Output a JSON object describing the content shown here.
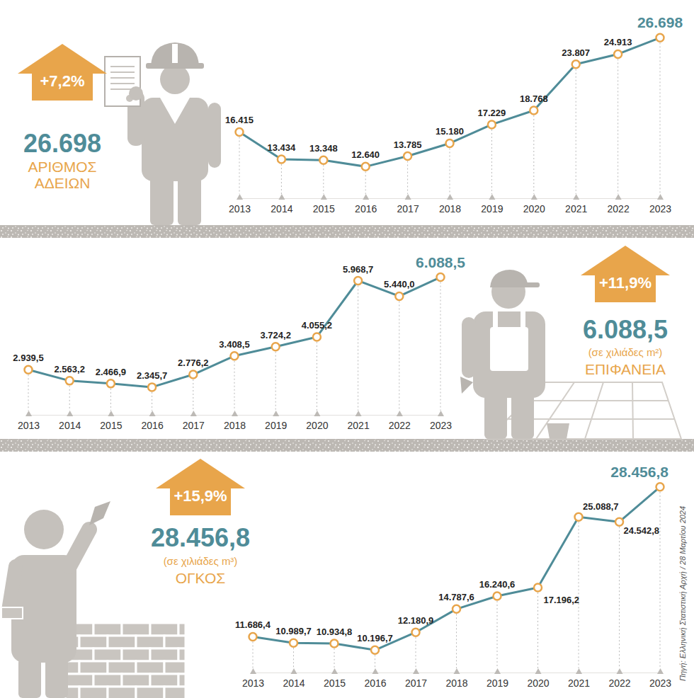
{
  "chart_data": [
    {
      "type": "line",
      "title": "ΑΡΙΘΜΟΣ ΑΔΕΙΩΝ",
      "annotations": [
        "+7,2%",
        "26.698"
      ],
      "categories": [
        "2013",
        "2014",
        "2015",
        "2016",
        "2017",
        "2018",
        "2019",
        "2020",
        "2021",
        "2022",
        "2023"
      ],
      "values": [
        16415,
        13434,
        13348,
        12640,
        13785,
        15180,
        17229,
        18768,
        23807,
        24913,
        26698
      ],
      "value_labels": [
        "16.415",
        "13.434",
        "13.348",
        "12.640",
        "13.785",
        "15.180",
        "17.229",
        "18.768",
        "23.807",
        "24.913",
        "26.698"
      ],
      "color": "#4f8c98",
      "marker": "circle",
      "data_labels": true,
      "tick_labels": "x",
      "grid": true,
      "ylim": [
        9500,
        28500
      ]
    },
    {
      "type": "line",
      "title": "ΕΠΙΦΑΝΕΙΑ",
      "subtitle": "(σε χιλιάδες m²)",
      "annotations": [
        "+11,9%",
        "6.088,5"
      ],
      "categories": [
        "2013",
        "2014",
        "2015",
        "2016",
        "2017",
        "2018",
        "2019",
        "2020",
        "2021",
        "2022",
        "2023"
      ],
      "values": [
        2939.5,
        2563.2,
        2466.9,
        2345.7,
        2776.2,
        3408.5,
        3724.2,
        4055.2,
        5968.7,
        5440.0,
        6088.5
      ],
      "value_labels": [
        "2.939,5",
        "2.563,2",
        "2.466,9",
        "2.345,7",
        "2.776,2",
        "3.408,5",
        "3.724,2",
        "4.055,2",
        "5.968,7",
        "5.440,0",
        "6.088,5"
      ],
      "color": "#4f8c98",
      "marker": "circle",
      "data_labels": true,
      "tick_labels": "x",
      "grid": true,
      "ylim": [
        1500,
        6800
      ]
    },
    {
      "type": "line",
      "title": "ΟΓΚΟΣ",
      "subtitle": "(σε χιλιάδες m³)",
      "annotations": [
        "+15,9%",
        "28.456,8"
      ],
      "categories": [
        "2013",
        "2014",
        "2015",
        "2016",
        "2017",
        "2018",
        "2019",
        "2020",
        "2021",
        "2022",
        "2023"
      ],
      "values": [
        11686.4,
        10989.7,
        10934.8,
        10196.7,
        12180.9,
        14787.6,
        16240.6,
        17196.2,
        25088.7,
        24542.8,
        28456.8
      ],
      "value_labels": [
        "11.686,4",
        "10.989,7",
        "10.934,8",
        "10.196,7",
        "12.180,9",
        "14.787,6",
        "16.240,6",
        "17.196,2",
        "25.088,7",
        "24.542,8",
        "28.456,8"
      ],
      "color": "#4f8c98",
      "marker": "circle",
      "data_labels": true,
      "tick_labels": "x",
      "grid": true,
      "ylim": [
        8000,
        30500
      ]
    }
  ],
  "source": "Πηγή: Ελληνική Στατιστική Αρχή / 28 Μαρτίου 2024"
}
